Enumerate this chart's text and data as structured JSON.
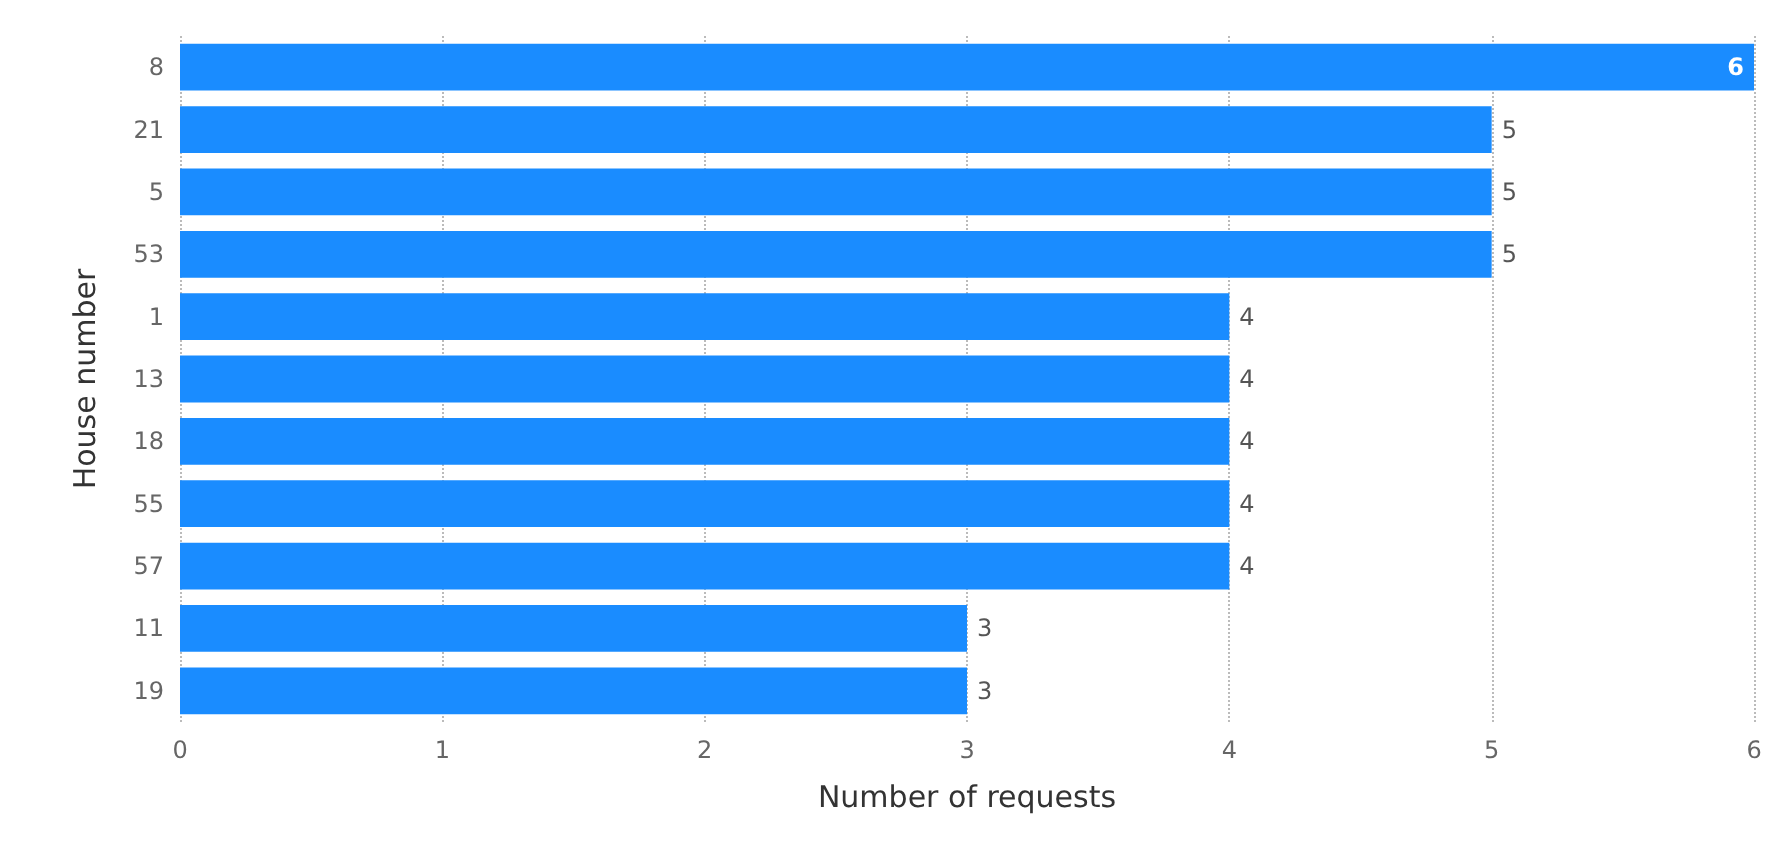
{
  "chart_data": {
    "type": "bar",
    "orientation": "horizontal",
    "xlabel": "Number of requests",
    "ylabel": "House number",
    "categories": [
      "8",
      "21",
      "5",
      "53",
      "1",
      "13",
      "18",
      "55",
      "57",
      "11",
      "19"
    ],
    "values": [
      6,
      5,
      5,
      5,
      4,
      4,
      4,
      4,
      4,
      3,
      3
    ],
    "color": "#1a8cff",
    "xlim": [
      0,
      6
    ],
    "xticks": [
      0,
      1,
      2,
      3,
      4,
      5,
      6
    ],
    "grid": "x",
    "data_labels": true
  }
}
